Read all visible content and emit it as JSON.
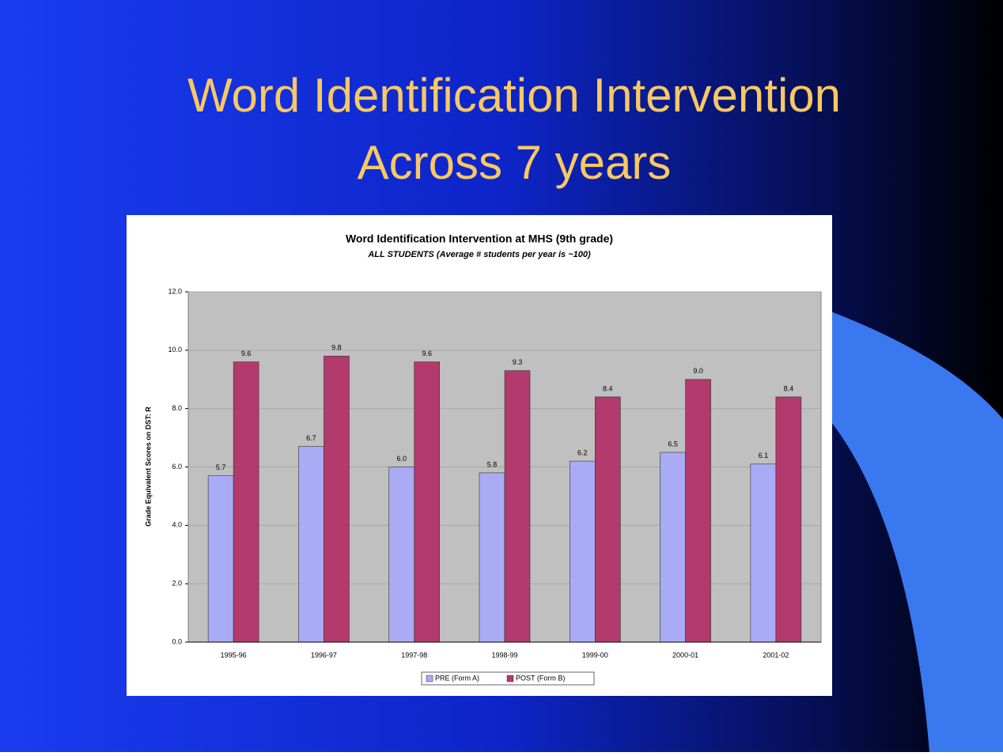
{
  "slide": {
    "title": [
      "Word Identification Intervention",
      "Across 7 years"
    ]
  },
  "chart_data": {
    "type": "bar",
    "title": "Word Identification Intervention at MHS (9th grade)",
    "subtitle": "ALL STUDENTS (Average # students per year is ~100)",
    "y_label": "Grade Equivalent Scores on DST: R",
    "categories": [
      "1995-96",
      "1996-97",
      "1997-98",
      "1998-99",
      "1999-00",
      "2000-01",
      "2001-02"
    ],
    "series": [
      {
        "name": "PRE (Form A)",
        "color": "#a9abf5",
        "values": [
          5.7,
          6.7,
          6.0,
          5.8,
          6.2,
          6.5,
          6.1
        ],
        "value_labels": [
          "5.7",
          "6.7",
          "6.0",
          "5.8",
          "6.2",
          "6.5",
          "6.1"
        ]
      },
      {
        "name": "POST (Form B)",
        "color": "#b23a6c",
        "values": [
          9.6,
          9.8,
          9.6,
          9.3,
          8.4,
          9.0,
          8.4
        ],
        "value_labels": [
          "9.6",
          "9.8",
          "9.6",
          "9.3",
          "8.4",
          "9.0",
          "8.4"
        ]
      }
    ],
    "ylim": [
      0,
      12
    ],
    "yticks": [
      {
        "value": 0,
        "label": "0.0"
      },
      {
        "value": 2,
        "label": "2.0"
      },
      {
        "value": 4,
        "label": "4.0"
      },
      {
        "value": 6,
        "label": "6.0"
      },
      {
        "value": 8,
        "label": "8.0"
      },
      {
        "value": 10,
        "label": "10.0"
      },
      {
        "value": 12,
        "label": "12.0"
      }
    ],
    "grid": true,
    "legend": "bottom"
  }
}
